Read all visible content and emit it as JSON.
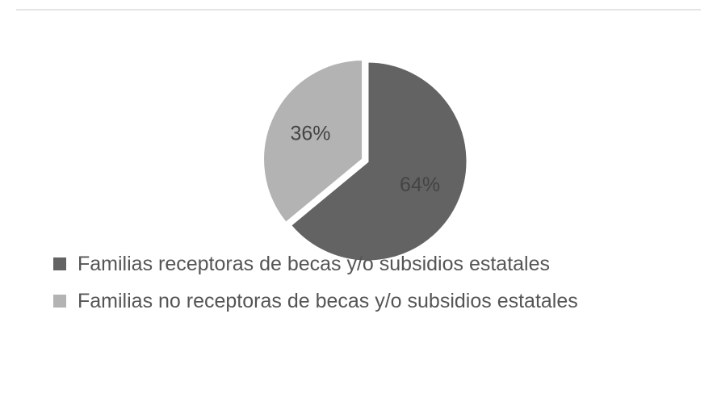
{
  "chart_data": {
    "type": "pie",
    "categories": [
      "Familias receptoras de becas y/o subsidios estatales",
      "Familias no receptoras de becas y/o subsidios estatales"
    ],
    "values": [
      64,
      36
    ],
    "value_labels": [
      "64%",
      "36%"
    ],
    "colors": [
      "#636363",
      "#b3b3b3"
    ],
    "legend": "bottom"
  }
}
